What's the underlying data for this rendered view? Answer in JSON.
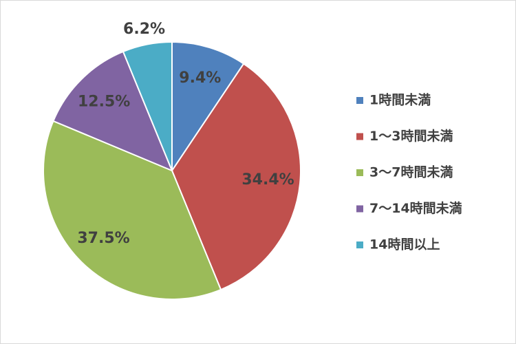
{
  "chart_data": {
    "type": "pie",
    "categories": [
      "1時間未満",
      "1～3時間未満",
      "3～7時間未満",
      "7～14時間未満",
      "14時間以上"
    ],
    "values": [
      9.4,
      34.4,
      37.5,
      12.5,
      6.2
    ],
    "value_labels": [
      "9.4%",
      "34.4%",
      "37.5%",
      "12.5%",
      "6.2%"
    ],
    "colors": [
      "#4f81bd",
      "#c0504d",
      "#9bbb59",
      "#8064a2",
      "#4bacc6"
    ],
    "legend": "right"
  }
}
